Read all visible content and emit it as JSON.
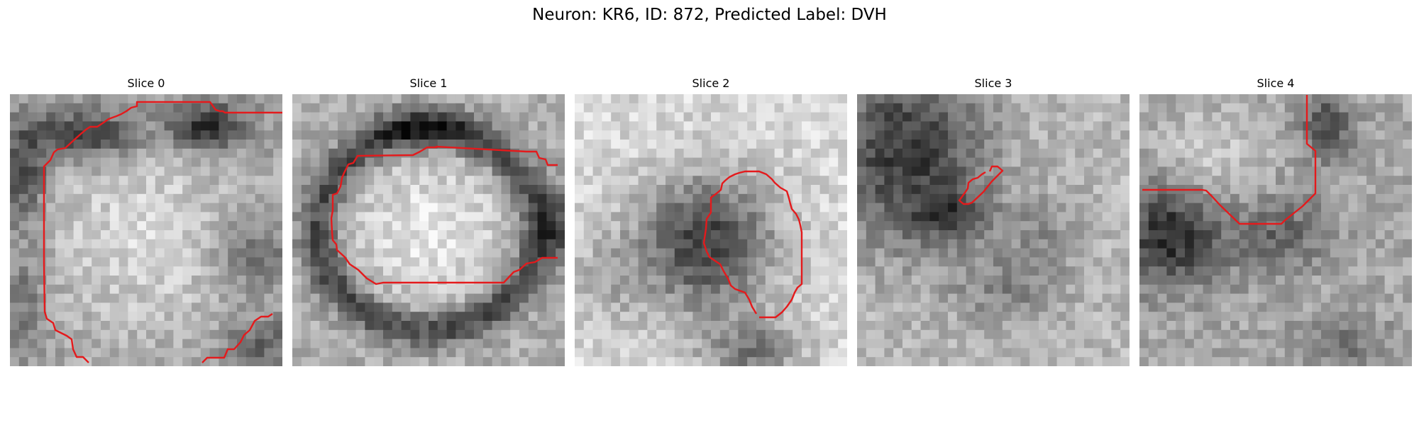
{
  "figure": {
    "title": "Neuron: KR6, ID: 872, Predicted Label: DVH"
  },
  "colors": {
    "contour": "#e41a1c",
    "background": "#ffffff"
  },
  "colormap": "gray",
  "panels": [
    {
      "title": "Slice 0",
      "pattern": "ring-bright-center-dark-top"
    },
    {
      "title": "Slice 1",
      "pattern": "dark-ring-bright-oval"
    },
    {
      "title": "Slice 2",
      "pattern": "dark-blob-center"
    },
    {
      "title": "Slice 3",
      "pattern": "dark-top-left-noise"
    },
    {
      "title": "Slice 4",
      "pattern": "dark-left-noise"
    }
  ]
}
